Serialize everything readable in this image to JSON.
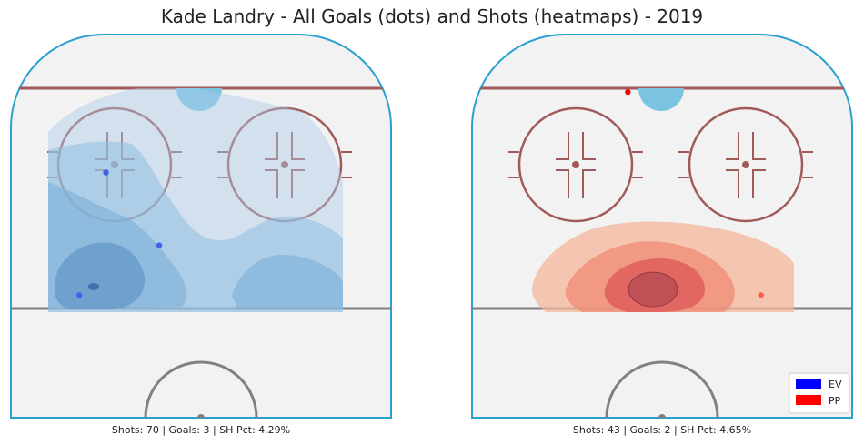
{
  "chart_data": {
    "type": "heatmap",
    "title": "Kade Landry - All Goals (dots) and Shots (heatmaps) - 2019",
    "panels": [
      {
        "name": "EV",
        "color": "#1f77b4",
        "shots": 70,
        "goals": 3,
        "sh_pct": "4.29%",
        "caption": "Shots: 70 | Goals: 3 | SH Pct: 4.29%",
        "goal_points": [
          {
            "x": 0.25,
            "y": 0.36
          },
          {
            "x": 0.39,
            "y": 0.55
          },
          {
            "x": 0.18,
            "y": 0.68
          }
        ]
      },
      {
        "name": "PP",
        "color": "#e8482c",
        "shots": 43,
        "goals": 2,
        "sh_pct": "4.65%",
        "caption": "Shots: 43 | Goals: 2 | SH Pct: 4.65%",
        "goal_points": [
          {
            "x": 0.41,
            "y": 0.15
          },
          {
            "x": 0.76,
            "y": 0.68
          }
        ]
      }
    ],
    "legend": {
      "placement": "bottom-right",
      "entries": [
        {
          "label": "EV",
          "color": "#0000ff"
        },
        {
          "label": "PP",
          "color": "#ff0000"
        }
      ]
    }
  }
}
